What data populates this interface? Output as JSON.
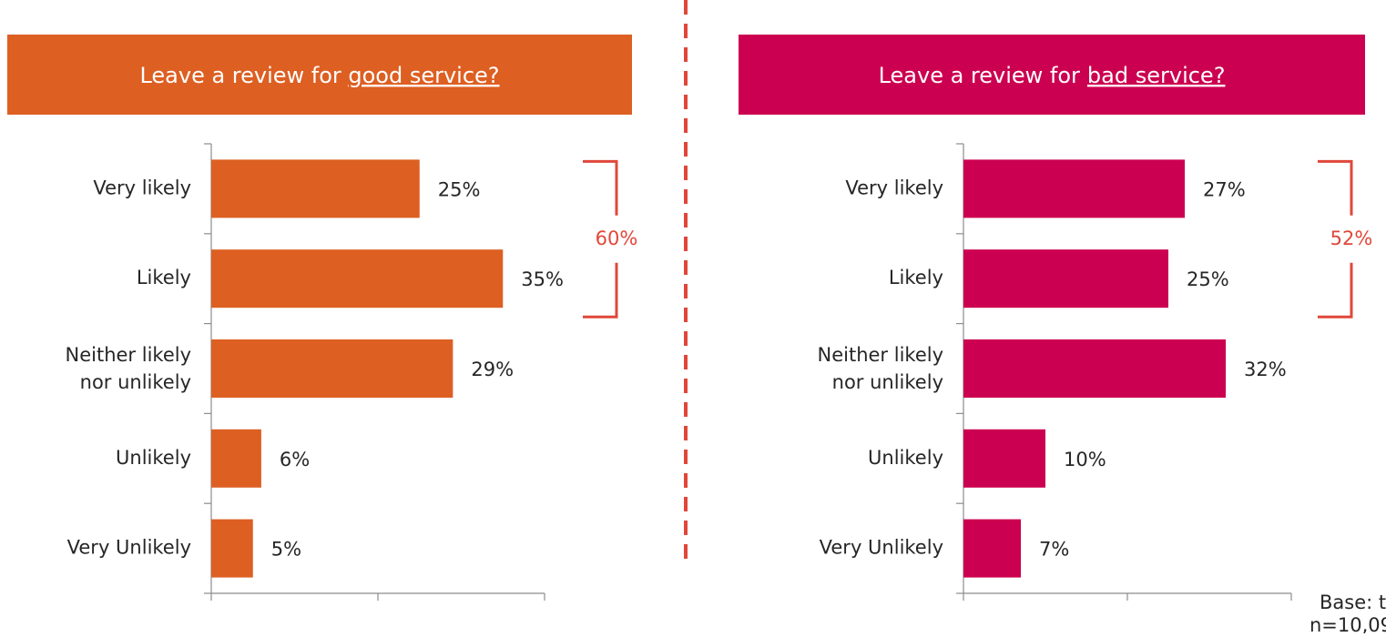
{
  "chart_data": [
    {
      "type": "bar",
      "orientation": "horizontal",
      "title": {
        "text": "Leave a review for",
        "emphasis": "good service?"
      },
      "color": "#dd5f22",
      "categories": [
        "Very likely",
        "Likely",
        [
          "Neither likely",
          "nor unlikely"
        ],
        "Unlikely",
        "Very Unlikely"
      ],
      "values": [
        25,
        35,
        29,
        6,
        5
      ],
      "value_labels": [
        "25%",
        "35%",
        "29%",
        "6%",
        "5%"
      ],
      "xlim": [
        0,
        40
      ],
      "xticks": [
        0,
        20,
        40
      ],
      "bracket": {
        "value": 60,
        "label": "60%",
        "span": [
          0,
          1
        ],
        "color": "#e0473a"
      }
    },
    {
      "type": "bar",
      "orientation": "horizontal",
      "title": {
        "text": "Leave a review for",
        "emphasis": "bad service?"
      },
      "color": "#cc0050",
      "categories": [
        "Very likely",
        "Likely",
        [
          "Neither likely",
          "nor unlikely"
        ],
        "Unlikely",
        "Very Unlikely"
      ],
      "values": [
        27,
        25,
        32,
        10,
        7
      ],
      "value_labels": [
        "27%",
        "25%",
        "32%",
        "10%",
        "7%"
      ],
      "xlim": [
        0,
        40
      ],
      "xticks": [
        0,
        20,
        40
      ],
      "bracket": {
        "value": 52,
        "label": "52%",
        "span": [
          0,
          1
        ],
        "color": "#e0473a"
      }
    }
  ],
  "footnote": [
    "Base: t",
    "n=10,09"
  ]
}
